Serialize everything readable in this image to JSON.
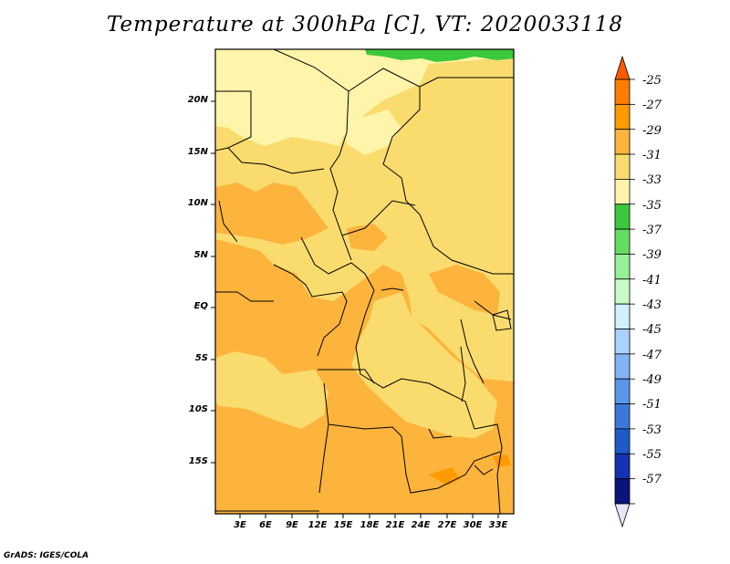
{
  "title": "Temperature at 300hPa [C], VT: 2020033118",
  "credit": "GrADS: IGES/COLA",
  "lat_labels": [
    "20N",
    "15N",
    "10N",
    "5N",
    "EQ",
    "5S",
    "10S",
    "15S"
  ],
  "lon_labels": [
    "3E",
    "6E",
    "9E",
    "12E",
    "15E",
    "18E",
    "21E",
    "24E",
    "27E",
    "30E",
    "33E"
  ],
  "colorbar": {
    "labels": [
      "-25",
      "-27",
      "-29",
      "-31",
      "-33",
      "-35",
      "-37",
      "-39",
      "-41",
      "-43",
      "-45",
      "-47",
      "-49",
      "-51",
      "-53",
      "-55",
      "-57"
    ],
    "colors": [
      "#ff5a00",
      "#ff7d00",
      "#ff9b00",
      "#fcb43c",
      "#fadc6e",
      "#fff5aa",
      "#3cc83c",
      "#64dc64",
      "#96f096",
      "#c8fac8",
      "#d2f0ff",
      "#aad2ff",
      "#82b4f5",
      "#5a96eb",
      "#3c78dc",
      "#1e5ac8",
      "#1432b4",
      "#0a147a",
      "#e6e6fa"
    ]
  },
  "map": {
    "background_color": "#fadc6e",
    "region_colors": {
      "dark_band": "#fcb43c",
      "pale_band": "#fff5aa",
      "green_band": "#3cc83c",
      "accent": "#ff9b00"
    }
  }
}
